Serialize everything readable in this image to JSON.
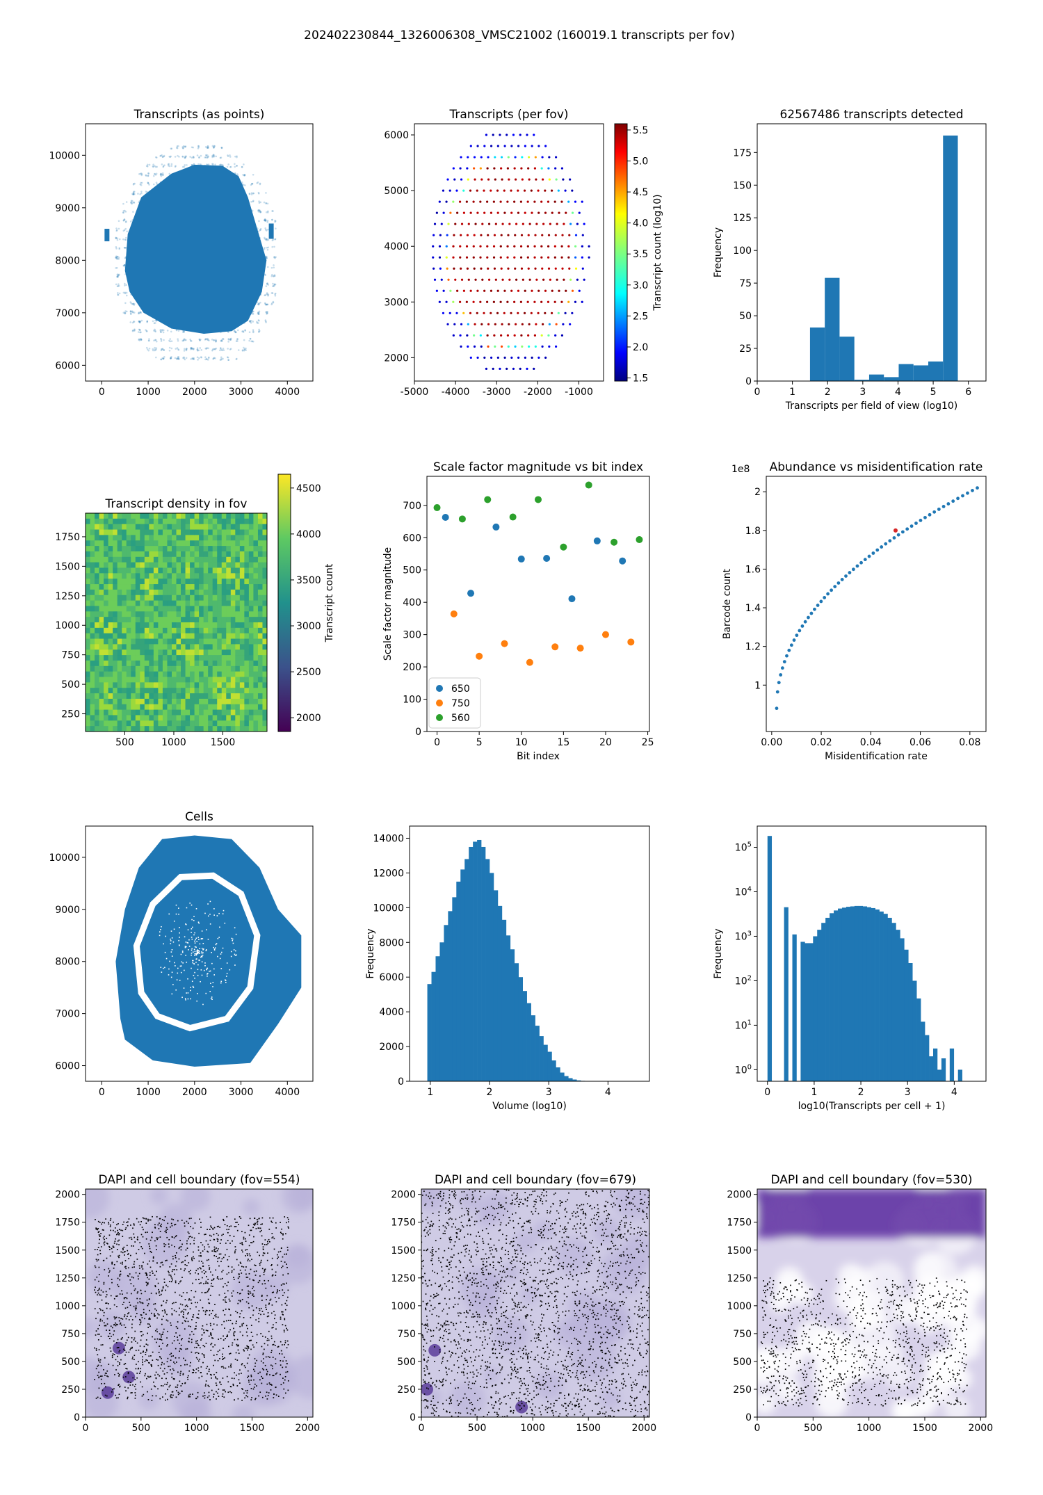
{
  "suptitle": "202402230844_1326006308_VMSC21002 (160019.1 transcripts per fov)",
  "colors": {
    "blue": "#1f77b4",
    "orange": "#ff7f0e",
    "green": "#2ca02c",
    "red": "#d62728"
  },
  "chart_data": [
    {
      "type": "scatter",
      "title": "Transcripts (as points)",
      "xlabel": "",
      "ylabel": "",
      "xlim": [
        -350,
        4550
      ],
      "ylim": [
        5700,
        10600
      ],
      "xticks": [
        0,
        1000,
        2000,
        3000,
        4000
      ],
      "yticks": [
        6000,
        7000,
        8000,
        9000,
        10000
      ],
      "series_color": "#1f77b4",
      "description_points": "dense transcript cloud"
    },
    {
      "type": "scatter",
      "title": "Transcripts (per fov)",
      "xlabel": "",
      "ylabel": "",
      "xlim": [
        -5000,
        -400
      ],
      "ylim": [
        1580,
        6200
      ],
      "xticks": [
        -5000,
        -4000,
        -3000,
        -2000,
        -1000
      ],
      "yticks": [
        2000,
        3000,
        4000,
        5000,
        6000
      ],
      "colorbar": {
        "label": "Transcript count (log10)",
        "min": 1.45,
        "max": 5.6,
        "ticks": [
          1.5,
          2.0,
          2.5,
          3.0,
          3.5,
          4.0,
          4.5,
          5.0,
          5.5
        ],
        "colormap": "jet"
      }
    },
    {
      "type": "bar",
      "title": "62567486 transcripts detected",
      "xlabel": "Transcripts per field of view (log10)",
      "ylabel": "Frequency",
      "xlim": [
        0,
        6.5
      ],
      "ylim": [
        0,
        197
      ],
      "xticks": [
        0,
        1,
        2,
        3,
        4,
        5,
        6
      ],
      "yticks": [
        0,
        25,
        50,
        75,
        100,
        125,
        150,
        175
      ],
      "bin_edges": [
        1.5,
        1.92,
        2.34,
        2.76,
        3.18,
        3.6,
        4.02,
        4.44,
        4.86,
        5.28,
        5.7
      ],
      "values": [
        41,
        79,
        34,
        1,
        5,
        3,
        13,
        12,
        15,
        188
      ]
    },
    {
      "type": "heatmap",
      "title": "Transcript density in fov",
      "xlabel": "",
      "ylabel": "",
      "xlim": [
        100,
        1950
      ],
      "ylim": [
        100,
        1950
      ],
      "xticks": [
        500,
        1000,
        1500
      ],
      "yticks": [
        250,
        500,
        750,
        1000,
        1250,
        1500,
        1750
      ],
      "colorbar": {
        "label": "Transcript count",
        "min": 1850,
        "max": 4650,
        "ticks": [
          2000,
          2500,
          3000,
          3500,
          4000,
          4500
        ],
        "colormap": "viridis"
      }
    },
    {
      "type": "scatter",
      "title": "Scale factor magnitude vs bit index",
      "xlabel": "Bit index",
      "ylabel": "Scale factor magnitude",
      "xlim": [
        -1.2,
        25.2
      ],
      "ylim": [
        0,
        790
      ],
      "xticks": [
        0,
        5,
        10,
        15,
        20,
        25
      ],
      "yticks": [
        0,
        100,
        200,
        300,
        400,
        500,
        600,
        700
      ],
      "legend_position": "lower-left",
      "series": [
        {
          "name": "650",
          "x": [
            1,
            4,
            7,
            10,
            13,
            16,
            19,
            22
          ],
          "y": [
            663,
            428,
            633,
            534,
            536,
            411,
            590,
            528
          ]
        },
        {
          "name": "750",
          "x": [
            2,
            5,
            8,
            11,
            14,
            17,
            20,
            23
          ],
          "y": [
            364,
            233,
            272,
            214,
            262,
            258,
            300,
            277
          ]
        },
        {
          "name": "560",
          "x": [
            0,
            3,
            6,
            9,
            12,
            15,
            18,
            21,
            24
          ],
          "y": [
            693,
            658,
            718,
            664,
            718,
            571,
            763,
            586,
            594
          ]
        }
      ]
    },
    {
      "type": "scatter",
      "title": "Abundance vs misidentification rate",
      "xlabel": "Misidentification rate",
      "ylabel": "Barcode count",
      "offset_label": "1e8",
      "xlim": [
        -0.0022,
        0.0865
      ],
      "ylim": [
        0.76,
        2.08
      ],
      "xticks": [
        0.0,
        0.02,
        0.04,
        0.06,
        0.08
      ],
      "xtick_labels": [
        "0.00",
        "0.02",
        "0.04",
        "0.06",
        "0.08"
      ],
      "yticks": [
        1.0,
        1.2,
        1.4,
        1.6,
        1.8,
        2.0
      ],
      "highlight_point": {
        "x": 0.05,
        "y": 1.8
      }
    },
    {
      "type": "scatter",
      "title": "Cells",
      "xlabel": "",
      "ylabel": "",
      "xlim": [
        -350,
        4550
      ],
      "ylim": [
        5700,
        10600
      ],
      "xticks": [
        0,
        1000,
        2000,
        3000,
        4000
      ],
      "yticks": [
        6000,
        7000,
        8000,
        9000,
        10000
      ]
    },
    {
      "type": "bar",
      "title": "",
      "xlabel": "Volume (log10)",
      "ylabel": "Frequency",
      "xlim": [
        0.65,
        4.7
      ],
      "ylim": [
        0,
        14700
      ],
      "xticks": [
        1,
        2,
        3,
        4
      ],
      "yticks": [
        0,
        2000,
        4000,
        6000,
        8000,
        10000,
        12000,
        14000
      ],
      "bin_start": 0.95,
      "bin_width": 0.07,
      "values": [
        5600,
        6300,
        7200,
        8000,
        9000,
        9800,
        10600,
        11500,
        12200,
        12800,
        13500,
        13800,
        13900,
        13500,
        12800,
        12000,
        11000,
        10100,
        9300,
        8400,
        7600,
        6800,
        6000,
        5200,
        4500,
        3800,
        3200,
        2600,
        2100,
        1700,
        1200,
        800,
        500,
        300,
        180,
        100,
        50,
        25,
        10,
        5
      ]
    },
    {
      "type": "bar",
      "title": "",
      "xlabel": "log10(Transcripts per cell + 1)",
      "ylabel": "Frequency",
      "log_y": true,
      "xlim": [
        -0.22,
        4.68
      ],
      "ylim": [
        0.55,
        300000
      ],
      "xticks": [
        0,
        1,
        2,
        3,
        4
      ],
      "yticks": [
        1,
        10,
        100,
        1000,
        10000,
        100000
      ],
      "ytick_labels": [
        "10^0",
        "10^1",
        "10^2",
        "10^3",
        "10^4",
        "10^5"
      ],
      "bin_start": 0,
      "bin_width": 0.0887,
      "values": [
        180000,
        0,
        0,
        0,
        4500,
        0,
        1100,
        0,
        750,
        700,
        700,
        1000,
        1400,
        2000,
        2600,
        3300,
        3800,
        4200,
        4400,
        4600,
        4700,
        4800,
        4800,
        4700,
        4500,
        4300,
        4000,
        3600,
        3200,
        2600,
        2000,
        1400,
        900,
        500,
        250,
        100,
        40,
        12,
        6,
        2,
        3,
        1,
        1.8,
        0,
        3,
        0,
        1
      ]
    },
    {
      "type": "scatter",
      "title": "DAPI and cell boundary (fov=554)",
      "xlabel": "",
      "ylabel": "",
      "xlim": [
        0,
        2048
      ],
      "ylim": [
        0,
        2048
      ],
      "xticks": [
        0,
        500,
        1000,
        1500,
        2000
      ],
      "yticks": [
        0,
        250,
        500,
        750,
        1000,
        1250,
        1500,
        1750,
        2000
      ]
    },
    {
      "type": "scatter",
      "title": "DAPI and cell boundary (fov=679)",
      "xlabel": "",
      "ylabel": "",
      "xlim": [
        0,
        2048
      ],
      "ylim": [
        0,
        2048
      ],
      "xticks": [
        0,
        500,
        1000,
        1500,
        2000
      ],
      "yticks": [
        0,
        250,
        500,
        750,
        1000,
        1250,
        1500,
        1750,
        2000
      ]
    },
    {
      "type": "scatter",
      "title": "DAPI and cell boundary (fov=530)",
      "xlabel": "",
      "ylabel": "",
      "xlim": [
        0,
        2048
      ],
      "ylim": [
        0,
        2048
      ],
      "xticks": [
        0,
        500,
        1000,
        1500,
        2000
      ],
      "yticks": [
        0,
        250,
        500,
        750,
        1000,
        1250,
        1500,
        1750,
        2000
      ]
    }
  ]
}
